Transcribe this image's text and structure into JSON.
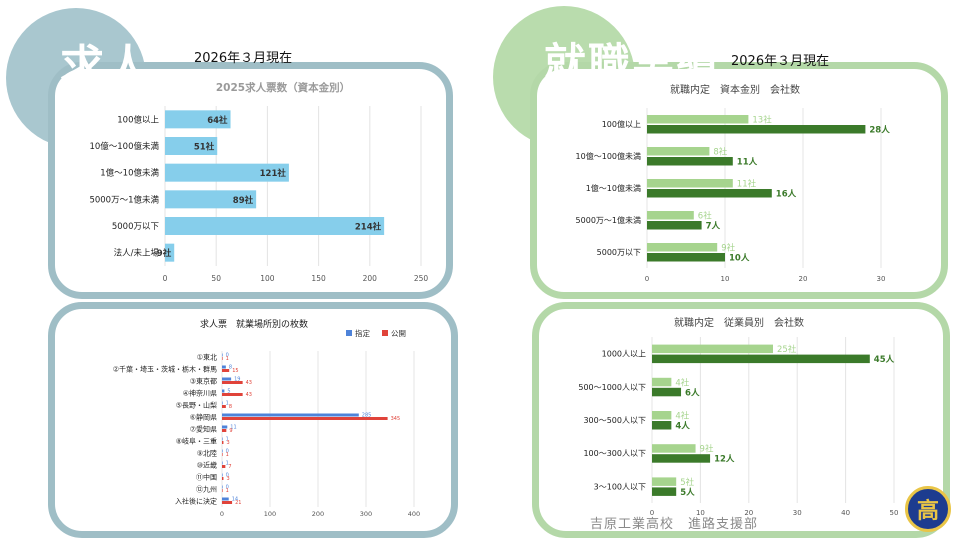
{
  "header_left": {
    "title": "求人",
    "date": "2026年３月現在"
  },
  "header_right": {
    "title": "就職実績",
    "date": "2026年３月現在"
  },
  "footer": {
    "text": "吉原工業高校　進路支援部"
  },
  "logo": {
    "label": "高"
  },
  "colors": {
    "blue_circle": "#a9c7cf",
    "green_circle": "#b9dcad",
    "bar_blue": "#86ceeb",
    "light_green": "#a6d48e",
    "dark_green": "#3b7a2a",
    "legend_blue": "#4e83d9",
    "legend_red": "#e0433a"
  },
  "chart_data": [
    {
      "id": "chart1",
      "type": "bar",
      "orientation": "horizontal",
      "title": "2025求人票数（資本金別）",
      "categories": [
        "100億以上",
        "10億〜100億未満",
        "1億〜10億未満",
        "5000万〜1億未満",
        "5000万以下",
        "法人/未上場"
      ],
      "values": [
        64,
        51,
        121,
        89,
        214,
        9
      ],
      "labels": [
        "64社",
        "51社",
        "121社",
        "89社",
        "214社",
        "9社"
      ],
      "xlim": [
        0,
        250
      ],
      "xticks": [
        "0",
        "50",
        "100",
        "150",
        "200",
        "250"
      ]
    },
    {
      "id": "chart2",
      "type": "bar",
      "orientation": "horizontal",
      "title": "求人票　就業場所別の枚数",
      "legend": [
        "指定",
        "公開"
      ],
      "categories": [
        "①東北",
        "②千葉・埼玉・茨城・栃木・群馬",
        "③東京都",
        "④神奈川県",
        "⑤長野・山梨",
        "⑥静岡県",
        "⑦愛知県",
        "⑧岐阜・三重",
        "⑨北陸",
        "⑩近畿",
        "⑪中国",
        "⑫九州",
        "入社後に決定"
      ],
      "series": [
        {
          "name": "指定",
          "values": [
            0,
            8,
            19,
            5,
            1,
            285,
            11,
            1,
            0,
            1,
            0,
            0,
            14
          ],
          "labels": [
            "0",
            "8",
            "19",
            "5",
            "1",
            "285",
            "11",
            "1",
            "0",
            "1",
            "0",
            "0",
            "14"
          ]
        },
        {
          "name": "公開",
          "values": [
            1,
            15,
            43,
            43,
            8,
            345,
            9,
            3,
            1,
            7,
            3,
            1,
            21
          ],
          "labels": [
            "1",
            "15",
            "43",
            "43",
            "8",
            "345",
            "9",
            "3",
            "1",
            "7",
            "3",
            "1",
            "21"
          ]
        }
      ],
      "xlim": [
        0,
        400
      ],
      "xticks": [
        "0",
        "100",
        "200",
        "300",
        "400"
      ]
    },
    {
      "id": "chart3",
      "type": "bar",
      "orientation": "horizontal",
      "title": "就職内定　資本金別　会社数",
      "categories": [
        "100億以上",
        "10億〜100億未満",
        "1億〜10億未満",
        "5000万〜1億未満",
        "5000万以下"
      ],
      "series": [
        {
          "name": "社",
          "values": [
            13,
            8,
            11,
            6,
            9
          ],
          "labels": [
            "13社",
            "8社",
            "11社",
            "6社",
            "9社"
          ]
        },
        {
          "name": "人",
          "values": [
            28,
            11,
            16,
            7,
            10
          ],
          "labels": [
            "28人",
            "11人",
            "16人",
            "7人",
            "10人"
          ]
        }
      ],
      "xlim": [
        0,
        30
      ],
      "xticks": [
        "0",
        "10",
        "20",
        "30"
      ]
    },
    {
      "id": "chart4",
      "type": "bar",
      "orientation": "horizontal",
      "title": "就職内定　従業員別　会社数",
      "categories": [
        "1000人以上",
        "500〜1000人以下",
        "300〜500人以下",
        "100〜300人以下",
        "3〜100人以下"
      ],
      "series": [
        {
          "name": "社",
          "values": [
            25,
            4,
            4,
            9,
            5
          ],
          "labels": [
            "25社",
            "4社",
            "4社",
            "9社",
            "5社"
          ]
        },
        {
          "name": "人",
          "values": [
            45,
            6,
            4,
            12,
            5
          ],
          "labels": [
            "45人",
            "6人",
            "4人",
            "12人",
            "5人"
          ]
        }
      ],
      "xlim": [
        0,
        50
      ],
      "xticks": [
        "0",
        "10",
        "20",
        "30",
        "40",
        "50"
      ]
    }
  ]
}
